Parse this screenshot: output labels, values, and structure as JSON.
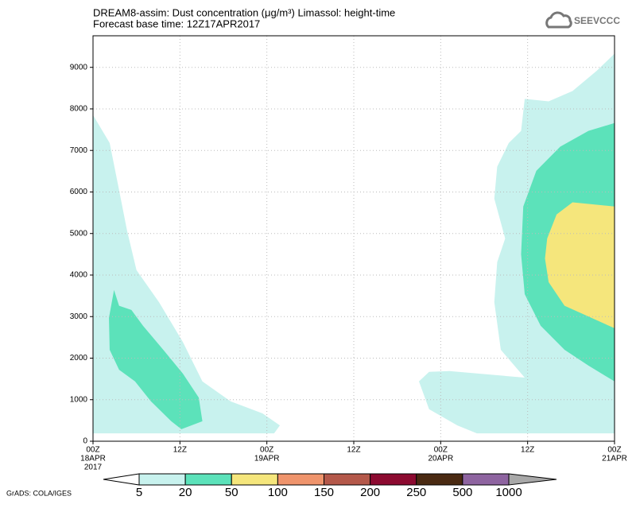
{
  "chart_data": {
    "type": "contour",
    "title": "DREAM8-assim: Dust concentration (μg/m³) Limassol: height-time",
    "subtitle": "Forecast base time: 12Z17APR2017",
    "logo": "SEEVCCC",
    "footer": "GrADS: COLA/IGES",
    "xlim": [
      0,
      72
    ],
    "ylim": [
      0,
      9760
    ],
    "xticks": [
      {
        "value": 0,
        "label": [
          "00Z",
          "18APR",
          "2017"
        ]
      },
      {
        "value": 12,
        "label": [
          "12Z"
        ]
      },
      {
        "value": 24,
        "label": [
          "00Z",
          "19APR"
        ]
      },
      {
        "value": 36,
        "label": [
          "12Z"
        ]
      },
      {
        "value": 48,
        "label": [
          "00Z",
          "20APR"
        ]
      },
      {
        "value": 60,
        "label": [
          "12Z"
        ]
      },
      {
        "value": 72,
        "label": [
          "00Z",
          "21APR"
        ]
      }
    ],
    "yticks": [
      0,
      1000,
      2000,
      3000,
      4000,
      5000,
      6000,
      7000,
      8000,
      9000
    ],
    "grid": true,
    "colorbar": {
      "levels": [
        5,
        20,
        50,
        100,
        150,
        200,
        250,
        500,
        1000
      ],
      "colors": [
        "#c8f2ee",
        "#5ce2ba",
        "#f5e67c",
        "#ef946c",
        "#b4584a",
        "#8c0a30",
        "#4a2a12",
        "#8e64a0"
      ],
      "below_color": "#ffffff",
      "above_color": "#a8a8a8"
    },
    "regions": [
      {
        "level": 5,
        "x": [
          0,
          2.3,
          3.4,
          4.7,
          6.0,
          9.1,
          12.4,
          15.1,
          19.0,
          23.4,
          25.8,
          25.0,
          0
        ],
        "y": [
          7850,
          7180,
          6220,
          5070,
          4120,
          3350,
          2390,
          1440,
          960,
          670,
          380,
          190,
          190
        ]
      },
      {
        "level": 20,
        "x": [
          2.9,
          3.6,
          5.3,
          6.9,
          9.7,
          12.4,
          14.6,
          15.1,
          12.2,
          10.8,
          8.0,
          5.8,
          3.6,
          2.3,
          2.2
        ],
        "y": [
          3640,
          3260,
          3160,
          2780,
          2200,
          1630,
          1050,
          480,
          290,
          480,
          960,
          1440,
          1720,
          2200,
          2970
        ]
      },
      {
        "level": 5,
        "x": [
          45.0,
          46.4,
          49.2,
          59.6,
          56.3,
          55.4,
          55.8,
          56.9,
          55.4,
          55.8,
          57.4,
          59.1,
          59.6,
          62.9,
          66.2,
          69.5,
          72,
          72,
          53.0,
          50.3,
          46.4
        ],
        "y": [
          1440,
          1670,
          1690,
          1530,
          2200,
          3350,
          4310,
          4880,
          5840,
          6610,
          7180,
          7470,
          8240,
          8180,
          8430,
          8910,
          9330,
          190,
          190,
          380,
          770
        ]
      },
      {
        "level": 20,
        "x": [
          72,
          68.4,
          64.5,
          61.2,
          59.4,
          59.1,
          59.6,
          61.8,
          65.1,
          68.4,
          72
        ],
        "y": [
          7660,
          7470,
          7090,
          6510,
          5650,
          4500,
          3540,
          2780,
          2200,
          1820,
          1440
        ]
      },
      {
        "level": 50,
        "x": [
          72,
          66.2,
          64.0,
          62.7,
          62.4,
          62.9,
          65.1,
          68.8,
          72
        ],
        "y": [
          5650,
          5750,
          5460,
          4880,
          4400,
          3830,
          3260,
          2970,
          2720
        ]
      }
    ]
  }
}
